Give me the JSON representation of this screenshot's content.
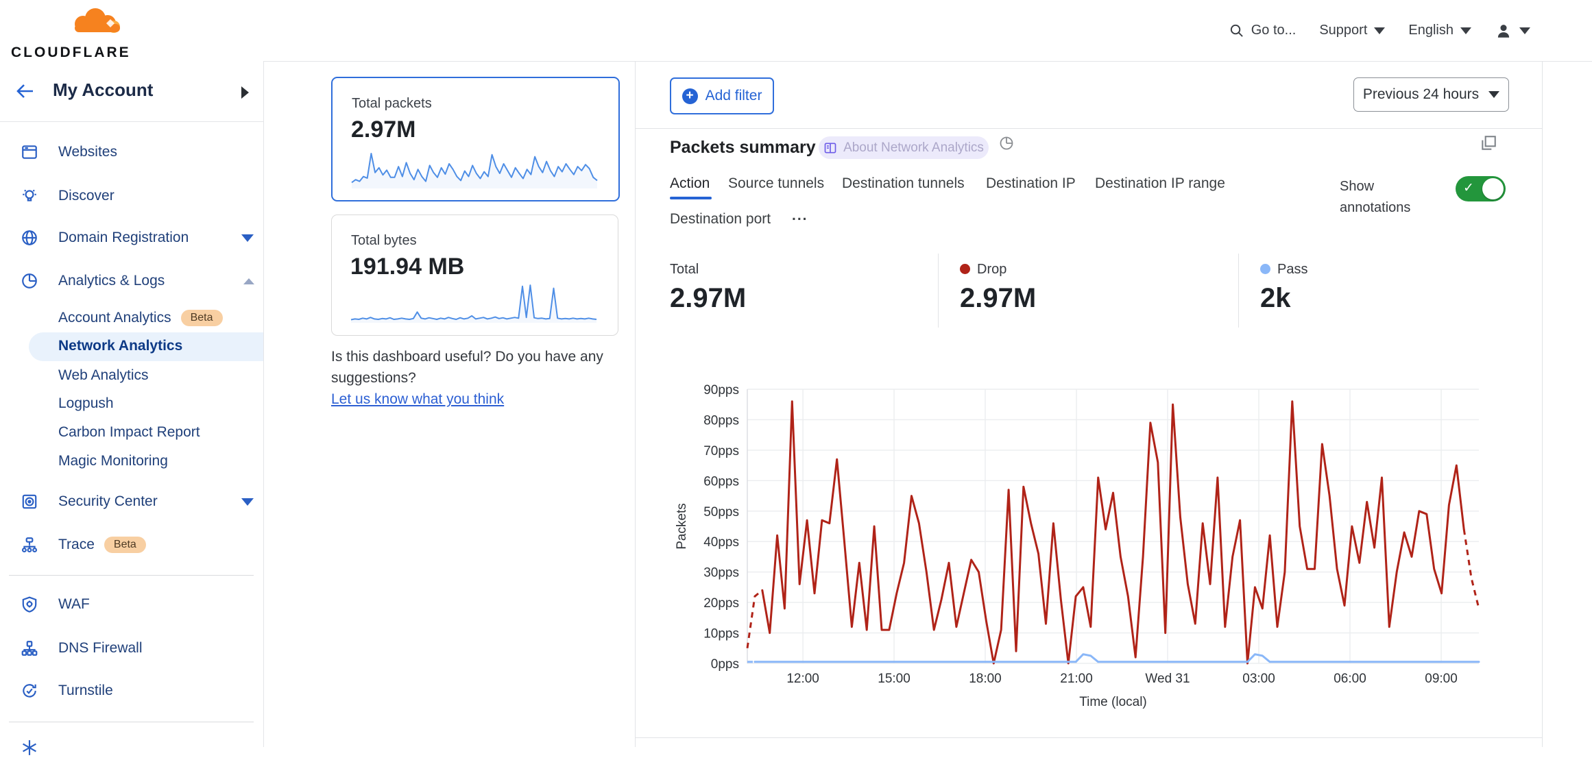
{
  "navbar": {
    "brand": "CLOUDFLARE",
    "goto": "Go to...",
    "support": "Support",
    "language": "English"
  },
  "sidebar": {
    "account": "My Account",
    "websites": "Websites",
    "discover": "Discover",
    "domain_registration": "Domain Registration",
    "analytics_logs": "Analytics & Logs",
    "account_analytics": "Account Analytics",
    "account_analytics_badge": "Beta",
    "network_analytics": "Network Analytics",
    "web_analytics": "Web Analytics",
    "logpush": "Logpush",
    "carbon_impact": "Carbon Impact Report",
    "magic_monitoring": "Magic Monitoring",
    "security_center": "Security Center",
    "trace": "Trace",
    "trace_badge": "Beta",
    "waf": "WAF",
    "dns_firewall": "DNS Firewall",
    "turnstile": "Turnstile"
  },
  "summary_cards": {
    "packets": {
      "title": "Total packets",
      "value": "2.97M",
      "selected": true
    },
    "bytes": {
      "title": "Total bytes",
      "value": "191.94 MB",
      "selected": false
    }
  },
  "feedback": {
    "question": "Is this dashboard useful? Do you have any suggestions?",
    "link": "Let us know what you think"
  },
  "main": {
    "add_filter": "Add filter",
    "time_range": "Previous 24 hours",
    "card_title": "Packets summary",
    "about_badge": "About Network Analytics",
    "tabs": [
      {
        "label": "Action",
        "active": true
      },
      {
        "label": "Source tunnels",
        "active": false
      },
      {
        "label": "Destination tunnels",
        "active": false
      },
      {
        "label": "Destination IP",
        "active": false
      },
      {
        "label": "Destination IP range",
        "active": false
      },
      {
        "label": "Destination port",
        "active": false
      },
      {
        "label": "...",
        "active": false
      }
    ],
    "show_annotations": "Show annotations",
    "annotations_on": true,
    "totals": [
      {
        "label": "Total",
        "value": "2.97M",
        "dot": ""
      },
      {
        "label": "Drop",
        "value": "2.97M",
        "dot": "#b02318"
      },
      {
        "label": "Pass",
        "value": "2k",
        "dot": "#8ab7f8"
      }
    ]
  },
  "colors": {
    "accent_blue": "#2563d4",
    "drop_red": "#b02318",
    "pass_blue": "#8ab7f8",
    "toggle_green": "#23963c",
    "beta_badge_bg": "#f8cfa2",
    "selected_item_bg": "#e9f2fc",
    "sparkline_blue": "#4e8ee6",
    "brand_orange": "#f6821f"
  },
  "chart_data": {
    "packets_summary": {
      "type": "line",
      "title": "Packets summary",
      "ylabel": "Packets",
      "xlabel": "Time (local)",
      "y_unit": "pps",
      "ylim": [
        0,
        90
      ],
      "y_tick_step": 10,
      "grid": true,
      "x_ticks": [
        {
          "label": "12:00",
          "f": 0.076
        },
        {
          "label": "15:00",
          "f": 0.2006
        },
        {
          "label": "18:00",
          "f": 0.3252
        },
        {
          "label": "21:00",
          "f": 0.4499
        },
        {
          "label": "Wed 31",
          "f": 0.5745
        },
        {
          "label": "03:00",
          "f": 0.6992
        },
        {
          "label": "06:00",
          "f": 0.8238
        },
        {
          "label": "09:00",
          "f": 0.9485
        }
      ],
      "series": [
        {
          "name": "Drop",
          "color": "#b02318",
          "dashed_head_points": 3,
          "dashed_tail_points": 3,
          "values": [
            5,
            22,
            24,
            10,
            42,
            18,
            86,
            26,
            47,
            23,
            47,
            46,
            67,
            40,
            12,
            33,
            11,
            45,
            11,
            11,
            23,
            33,
            55,
            46,
            30,
            11,
            21,
            33,
            12,
            23,
            34,
            30,
            14,
            0,
            11,
            57,
            4,
            58,
            46,
            36,
            13,
            46,
            21,
            0,
            22,
            25,
            12,
            61,
            44,
            56,
            35,
            22,
            2,
            35,
            79,
            66,
            10,
            85,
            48,
            26,
            13,
            46,
            26,
            61,
            12,
            35,
            47,
            0,
            25,
            18,
            42,
            12,
            30,
            86,
            45,
            31,
            31,
            72,
            55,
            31,
            19,
            45,
            33,
            53,
            38,
            61,
            12,
            30,
            43,
            35,
            50,
            49,
            31,
            23,
            52,
            65,
            44,
            28,
            18
          ]
        },
        {
          "name": "Pass",
          "color": "#8ab7f8",
          "dashed_head_points": 2,
          "dashed_tail_points": 0,
          "values": [
            0.5,
            0.5,
            0.5,
            0.5,
            0.5,
            0.5,
            0.5,
            0.5,
            0.5,
            0.5,
            0.5,
            0.5,
            0.5,
            0.5,
            0.5,
            0.5,
            0.5,
            0.5,
            0.5,
            0.5,
            0.5,
            0.5,
            0.5,
            0.5,
            0.5,
            0.5,
            0.5,
            0.5,
            0.5,
            0.5,
            0.5,
            0.5,
            0.5,
            0.5,
            0.5,
            0.5,
            0.5,
            0.5,
            0.5,
            0.5,
            0.5,
            0.5,
            0.5,
            0.5,
            0.5,
            3,
            2.5,
            0.5,
            0.5,
            0.5,
            0.5,
            0.5,
            0.5,
            0.5,
            0.5,
            0.5,
            0.5,
            0.5,
            0.5,
            0.5,
            0.5,
            0.5,
            0.5,
            0.5,
            0.5,
            0.5,
            0.5,
            0.5,
            3,
            2.5,
            0.5,
            0.5,
            0.5,
            0.5,
            0.5,
            0.5,
            0.5,
            0.5,
            0.5,
            0.5,
            0.5,
            0.5,
            0.5,
            0.5,
            0.5,
            0.5,
            0.5,
            0.5,
            0.5,
            0.5,
            0.5,
            0.5,
            0.5,
            0.5,
            0.5,
            0.5,
            0.5,
            0.5,
            0.5
          ]
        }
      ]
    },
    "total_packets_sparkline": {
      "type": "line",
      "color": "#4e8ee6",
      "values": [
        15,
        22,
        18,
        30,
        26,
        88,
        40,
        52,
        34,
        46,
        28,
        28,
        55,
        30,
        65,
        38,
        22,
        48,
        30,
        18,
        58,
        40,
        28,
        52,
        36,
        62,
        48,
        30,
        20,
        44,
        30,
        58,
        38,
        25,
        42,
        30,
        85,
        55,
        38,
        62,
        45,
        28,
        52,
        38,
        25,
        48,
        35,
        80,
        55,
        40,
        68,
        45,
        30,
        55,
        42,
        62,
        48,
        35,
        55,
        45,
        60,
        50,
        28,
        20
      ]
    },
    "total_bytes_sparkline": {
      "type": "line",
      "color": "#4e8ee6",
      "values": [
        8,
        10,
        9,
        12,
        10,
        14,
        10,
        9,
        11,
        10,
        13,
        9,
        10,
        12,
        10,
        9,
        11,
        28,
        12,
        10,
        13,
        11,
        9,
        12,
        10,
        14,
        11,
        9,
        13,
        10,
        12,
        18,
        10,
        12,
        14,
        10,
        12,
        15,
        11,
        13,
        10,
        12,
        14,
        12,
        95,
        14,
        98,
        13,
        11,
        12,
        10,
        11,
        90,
        12,
        10,
        11,
        10,
        12,
        10,
        11,
        10,
        12,
        10,
        9
      ]
    }
  }
}
